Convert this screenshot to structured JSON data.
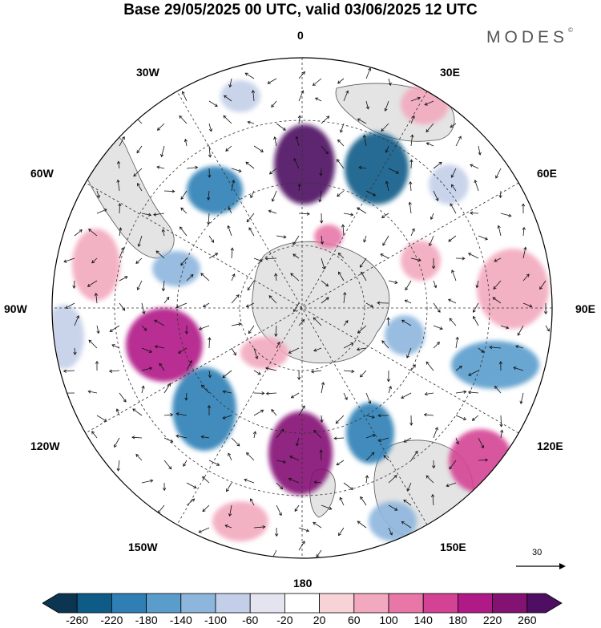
{
  "title": "Base 29/05/2025 00 UTC, valid 03/06/2025 12 UTC",
  "brand": {
    "text": "MODES",
    "mark": "©"
  },
  "longitude_labels": {
    "lon0": "0",
    "lon30e": "30E",
    "lon60e": "60E",
    "lon90e": "90E",
    "lon120e": "120E",
    "lon150e": "150E",
    "lon180": "180",
    "lon150w": "150W",
    "lon120w": "120W",
    "lon90w": "90W",
    "lon60w": "60W",
    "lon30w": "30W"
  },
  "reference_vector": {
    "label": "30"
  },
  "colorbar": {
    "tick_labels": [
      "-260",
      "-220",
      "-180",
      "-140",
      "-100",
      "-60",
      "-20",
      "20",
      "60",
      "100",
      "140",
      "180",
      "220",
      "260"
    ],
    "colors": [
      "#0b3550",
      "#0f5b87",
      "#2f7fb6",
      "#5a9ccc",
      "#8db6dd",
      "#c3cfe8",
      "#e4e4f1",
      "#ffffff",
      "#f7d3d7",
      "#f2a8be",
      "#e877a7",
      "#d44294",
      "#b01a86",
      "#841273",
      "#4e0e62"
    ]
  },
  "map_colors": {
    "land": "#e4e4e4",
    "coast": "#555555",
    "grid": "#333333"
  }
}
